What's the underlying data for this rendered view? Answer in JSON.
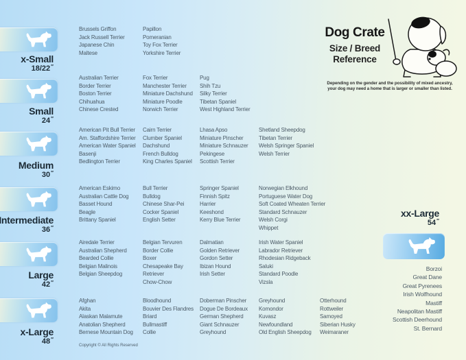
{
  "title": {
    "main": "Dog Crate",
    "sub1": "Size / Breed",
    "sub2": "Reference"
  },
  "disclaimer": {
    "line1": "Depending on the gender and the possibility of mixed ancestry,",
    "line2": "your dog may need  a home that is larger or smaller than listed."
  },
  "copyright": "Copyright © All Rights Reserved",
  "inch_mark": "″",
  "colors": {
    "background_left_blue": "#b7ddf6",
    "background_right_green": "#f3f7e5",
    "badge_blue": "#85c2ec",
    "xxl_box_blue": "#57aae1",
    "breed_text": "#4b5a66",
    "label_text": "#1c2b36"
  },
  "icons": {
    "badge_icon": "dog-silhouette-icon",
    "mascot": "cartoon-dogs-illustration"
  },
  "rows": [
    {
      "id": "x-small",
      "label": "x-Small",
      "size": "18/22",
      "columns": [
        [
          "Brussels Griffon",
          "Jack Russell Terrier",
          "Japanese Chin",
          "Maltese"
        ],
        [
          "Papillon",
          "Pomeranian",
          "Toy Fox Terrier",
          "Yorkshire Terrier"
        ]
      ]
    },
    {
      "id": "small",
      "label": "Small",
      "size": "24",
      "columns": [
        [
          "Australian Terrier",
          "Border Terrier",
          "Boston Terrier",
          "Chihuahua",
          "Chinese Crested"
        ],
        [
          "Fox Terrier",
          "Manchester Terrier",
          "Miniature Dachshund",
          "Miniature Poodle",
          "Norwich Terrier"
        ],
        [
          "Pug",
          "Shih Tzu",
          "Silky Terrier",
          "Tibetan Spaniel",
          "West Highland Terrier"
        ]
      ]
    },
    {
      "id": "medium",
      "label": "Medium",
      "size": "30",
      "columns": [
        [
          "American Pit Bull Terrier",
          "Am. Staffordshire Terrier",
          "American Water Spaniel",
          "Basenji",
          "Bedlington Terrier"
        ],
        [
          "Cairn Terrier",
          "Clumber Spaniel",
          "Dachshund",
          "French Bulldog",
          "King Charles Spaniel"
        ],
        [
          "Lhasa Apso",
          "Miniature Pinscher",
          "Miniature Schnauzer",
          "Pekingese",
          "Scottish Terrier"
        ],
        [
          "Shetland Sheepdog",
          "Tibetan Terrier",
          "Welsh Springer Spaniel",
          "Welsh Terrier"
        ]
      ]
    },
    {
      "id": "intermediate",
      "label": "Intermediate",
      "size": "36",
      "columns": [
        [
          "American Eskimo",
          "Australian Cattle Dog",
          "Basset Hound",
          "Beagle",
          "Brittany Spaniel"
        ],
        [
          "Bull Terrier",
          "Bulldog",
          "Chinese Shar-Pei",
          "Cocker Spaniel",
          "English Setter"
        ],
        [
          "Springer Spaniel",
          "Finnish Spitz",
          "Harrier",
          "Keeshond",
          "Kerry Blue Terrier"
        ],
        [
          "Norwegian Elkhound",
          "Portuguese Water Dog",
          "Soft Coated Wheaten Terrier",
          "Standard Schnauzer",
          "Welsh Corgi",
          "Whippet"
        ]
      ]
    },
    {
      "id": "large",
      "label": "Large",
      "size": "42",
      "columns": [
        [
          "Airedale Terrier",
          "Australian Shepherd",
          "Bearded Collie",
          "Belgian Malinois",
          "Belgian Sheepdog"
        ],
        [
          "Belgian Tervuren",
          "Border Collie",
          "Boxer",
          "Chesapeake Bay Retriever",
          "Chow-Chow"
        ],
        [
          "Dalmatian",
          "Golden Retriever",
          "Gordon Setter",
          "Ibizan Hound",
          "Irish Setter"
        ],
        [
          "Irish Water Spaniel",
          "Labrador Retriever",
          "Rhodesian Ridgeback",
          "Saluki",
          "Standard Poodle",
          "Vizsla"
        ]
      ]
    },
    {
      "id": "x-large",
      "label": "x-Large",
      "size": "48",
      "columns": [
        [
          "Afghan",
          "Akita",
          "Alaskan Malamute",
          "Anatolian Shepherd",
          "Bernese Mountain Dog"
        ],
        [
          "Bloodhound",
          "Bouvier Des Flandres",
          "Briard",
          "Bullmastiff",
          "Collie"
        ],
        [
          "Doberman Pinscher",
          "Dogue De Bordeaux",
          "German Shepherd",
          "Giant Schnauzer",
          "Greyhound"
        ],
        [
          "Greyhound",
          "Komondor",
          "Kuvasz",
          "Newfoundland",
          "Old English Sheepdog"
        ],
        [
          "Otterhound",
          "Rottweiler",
          "Samoyed",
          "Siberian Husky",
          "Weimaraner"
        ]
      ]
    }
  ],
  "xx_large": {
    "label": "xx-Large",
    "size": "54",
    "breeds": [
      "Borzoi",
      "Great Dane",
      "Great Pyrenees",
      "Irish Wolfhound",
      "Mastiff",
      "Neapolitan Mastiff",
      "Scottish Deerhound",
      "St. Bernard"
    ]
  }
}
